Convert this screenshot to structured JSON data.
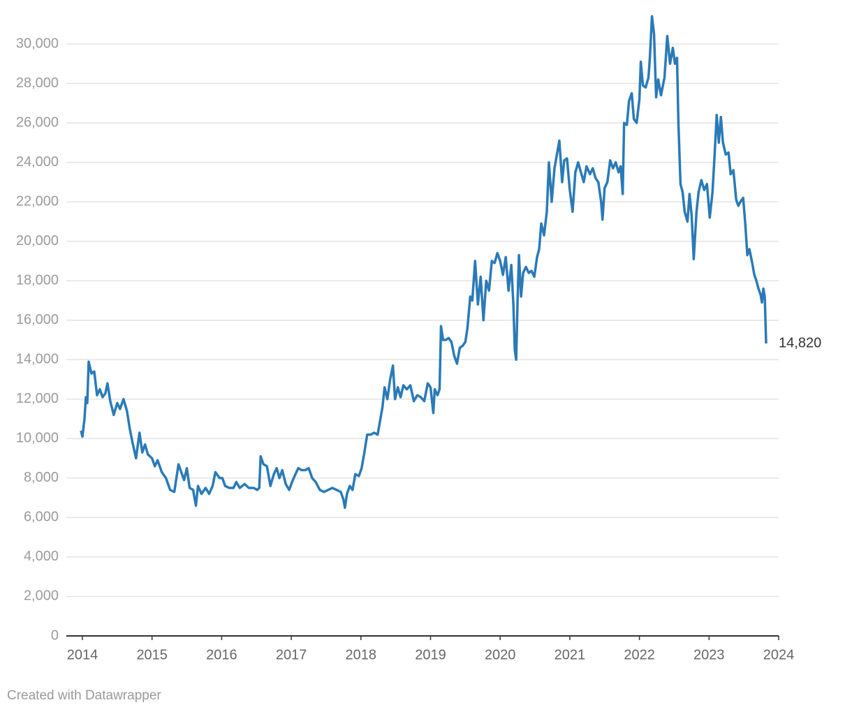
{
  "chart_data": {
    "type": "line",
    "x": [
      2013.98,
      2014.0,
      2014.03,
      2014.05,
      2014.07,
      2014.09,
      2014.13,
      2014.17,
      2014.21,
      2014.25,
      2014.29,
      2014.33,
      2014.36,
      2014.4,
      2014.45,
      2014.5,
      2014.54,
      2014.59,
      2014.64,
      2014.68,
      2014.72,
      2014.77,
      2014.82,
      2014.86,
      2014.9,
      2014.94,
      2015.0,
      2015.04,
      2015.08,
      2015.14,
      2015.2,
      2015.26,
      2015.32,
      2015.38,
      2015.42,
      2015.46,
      2015.5,
      2015.54,
      2015.59,
      2015.63,
      2015.66,
      2015.71,
      2015.77,
      2015.82,
      2015.87,
      2015.91,
      2015.97,
      2016.01,
      2016.05,
      2016.11,
      2016.17,
      2016.21,
      2016.26,
      2016.33,
      2016.39,
      2016.46,
      2016.51,
      2016.54,
      2016.56,
      2016.6,
      2016.65,
      2016.7,
      2016.75,
      2016.79,
      2016.83,
      2016.87,
      2016.92,
      2016.97,
      2017.01,
      2017.06,
      2017.1,
      2017.15,
      2017.2,
      2017.25,
      2017.3,
      2017.35,
      2017.41,
      2017.47,
      2017.53,
      2017.59,
      2017.65,
      2017.71,
      2017.75,
      2017.77,
      2017.8,
      2017.84,
      2017.88,
      2017.92,
      2017.97,
      2018.01,
      2018.05,
      2018.09,
      2018.14,
      2018.19,
      2018.24,
      2018.28,
      2018.31,
      2018.34,
      2018.38,
      2018.42,
      2018.46,
      2018.49,
      2018.53,
      2018.57,
      2018.61,
      2018.66,
      2018.71,
      2018.76,
      2018.81,
      2018.86,
      2018.91,
      2018.96,
      2019.0,
      2019.04,
      2019.06,
      2019.1,
      2019.13,
      2019.15,
      2019.18,
      2019.22,
      2019.26,
      2019.3,
      2019.34,
      2019.38,
      2019.42,
      2019.46,
      2019.5,
      2019.53,
      2019.57,
      2019.6,
      2019.64,
      2019.68,
      2019.72,
      2019.76,
      2019.8,
      2019.84,
      2019.88,
      2019.92,
      2019.96,
      2020.0,
      2020.04,
      2020.08,
      2020.12,
      2020.16,
      2020.19,
      2020.21,
      2020.23,
      2020.25,
      2020.27,
      2020.3,
      2020.33,
      2020.37,
      2020.41,
      2020.45,
      2020.49,
      2020.53,
      2020.56,
      2020.59,
      2020.63,
      2020.67,
      2020.7,
      2020.74,
      2020.78,
      2020.82,
      2020.85,
      2020.89,
      2020.92,
      2020.96,
      2021.0,
      2021.04,
      2021.08,
      2021.12,
      2021.16,
      2021.2,
      2021.24,
      2021.29,
      2021.33,
      2021.37,
      2021.41,
      2021.45,
      2021.47,
      2021.5,
      2021.54,
      2021.58,
      2021.62,
      2021.66,
      2021.7,
      2021.73,
      2021.76,
      2021.78,
      2021.82,
      2021.85,
      2021.89,
      2021.92,
      2021.96,
      2022.0,
      2022.02,
      2022.05,
      2022.09,
      2022.13,
      2022.15,
      2022.18,
      2022.21,
      2022.24,
      2022.27,
      2022.31,
      2022.36,
      2022.4,
      2022.44,
      2022.48,
      2022.51,
      2022.54,
      2022.56,
      2022.59,
      2022.62,
      2022.65,
      2022.69,
      2022.72,
      2022.75,
      2022.78,
      2022.82,
      2022.85,
      2022.89,
      2022.93,
      2022.97,
      2023.01,
      2023.05,
      2023.08,
      2023.11,
      2023.14,
      2023.17,
      2023.2,
      2023.24,
      2023.28,
      2023.31,
      2023.35,
      2023.39,
      2023.42,
      2023.45,
      2023.49,
      2023.52,
      2023.55,
      2023.58,
      2023.62,
      2023.65,
      2023.68,
      2023.71,
      2023.74,
      2023.76,
      2023.78,
      2023.8,
      2023.82
    ],
    "series": [
      {
        "color": "#2a7ab8",
        "values": [
          10400,
          10100,
          11000,
          12100,
          11800,
          13900,
          13300,
          13400,
          12200,
          12500,
          12100,
          12300,
          12800,
          11900,
          11200,
          11800,
          11500,
          12000,
          11400,
          10500,
          9800,
          9000,
          10300,
          9300,
          9700,
          9200,
          9000,
          8600,
          8900,
          8300,
          8000,
          7400,
          7300,
          8700,
          8300,
          7900,
          8500,
          7500,
          7400,
          6600,
          7600,
          7200,
          7500,
          7200,
          7600,
          8300,
          8000,
          8000,
          7600,
          7500,
          7500,
          7800,
          7500,
          7700,
          7500,
          7500,
          7400,
          7500,
          9100,
          8700,
          8600,
          7600,
          8200,
          8500,
          8000,
          8400,
          7700,
          7400,
          7800,
          8200,
          8500,
          8400,
          8400,
          8500,
          8000,
          7800,
          7400,
          7300,
          7400,
          7500,
          7400,
          7300,
          6900,
          6500,
          7200,
          7600,
          7400,
          8200,
          8100,
          8500,
          9300,
          10200,
          10200,
          10300,
          10200,
          11000,
          11600,
          12600,
          12000,
          13000,
          13700,
          12000,
          12600,
          12100,
          12700,
          12500,
          12700,
          11900,
          12200,
          12100,
          11900,
          12800,
          12600,
          11300,
          12500,
          12200,
          12500,
          15700,
          15000,
          15000,
          15100,
          14900,
          14200,
          13800,
          14600,
          14700,
          14900,
          15600,
          17200,
          17000,
          19000,
          16800,
          18200,
          16000,
          18000,
          17500,
          19000,
          18900,
          19400,
          19000,
          18300,
          19200,
          17500,
          18800,
          16800,
          14500,
          14000,
          17000,
          19300,
          17200,
          18400,
          18700,
          18400,
          18500,
          18200,
          19200,
          19600,
          20900,
          20300,
          21500,
          24000,
          22000,
          23700,
          24500,
          25100,
          23000,
          24100,
          24200,
          22600,
          21500,
          23500,
          24000,
          23500,
          23000,
          23800,
          23400,
          23700,
          23200,
          23000,
          22000,
          21100,
          22700,
          23000,
          24100,
          23700,
          24000,
          23500,
          23800,
          22400,
          26000,
          25900,
          27100,
          27500,
          26200,
          26000,
          27200,
          29100,
          27900,
          27800,
          28300,
          29300,
          31400,
          30500,
          27300,
          28200,
          27400,
          28300,
          30400,
          29000,
          29800,
          29000,
          29300,
          26000,
          22900,
          22500,
          21500,
          21000,
          22400,
          21300,
          19100,
          21500,
          22500,
          23100,
          22600,
          22900,
          21200,
          22500,
          24400,
          26400,
          25000,
          26300,
          25000,
          24400,
          24500,
          23400,
          23600,
          22100,
          21800,
          22000,
          22200,
          20900,
          19300,
          19600,
          18900,
          18300,
          18000,
          17600,
          17300,
          16900,
          17600,
          17200,
          14820
        ]
      }
    ],
    "xlim": [
      2014,
      2024
    ],
    "xticks": [
      2014,
      2015,
      2016,
      2017,
      2018,
      2019,
      2020,
      2021,
      2022,
      2023,
      2024
    ],
    "ylim": [
      0,
      30000
    ],
    "yticks": [
      0,
      {
        "value": 2000,
        "label": "2,000"
      },
      {
        "value": 4000,
        "label": "4,000"
      },
      {
        "value": 6000,
        "label": "6,000"
      },
      {
        "value": 8000,
        "label": "8,000"
      },
      {
        "value": 10000,
        "label": "10,000"
      },
      {
        "value": 12000,
        "label": "12,000"
      },
      {
        "value": 14000,
        "label": "14,000"
      },
      {
        "value": 16000,
        "label": "16,000"
      },
      {
        "value": 18000,
        "label": "18,000"
      },
      {
        "value": 20000,
        "label": "20,000"
      },
      {
        "value": 22000,
        "label": "22,000"
      },
      {
        "value": 24000,
        "label": "24,000"
      },
      {
        "value": 26000,
        "label": "26,000"
      },
      {
        "value": 28000,
        "label": "28,000"
      },
      {
        "value": 30000,
        "label": "30,000"
      }
    ],
    "grid": true,
    "annotations": [
      {
        "x": 2023.82,
        "y": 14820,
        "label": "14,820"
      }
    ],
    "source": "Created with Datawrapper"
  }
}
